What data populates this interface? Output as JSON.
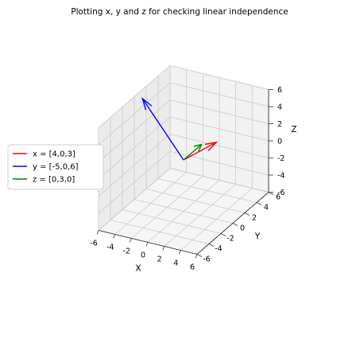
{
  "chart_data": {
    "type": "quiver3d",
    "title": "Plotting x, y and z for checking linear independence",
    "xlabel": "X",
    "ylabel": "Y",
    "zlabel": "Z",
    "xlim": [
      -6,
      6
    ],
    "ylim": [
      -6,
      6
    ],
    "zlim": [
      -6,
      6
    ],
    "ticks": [
      -6,
      -4,
      -2,
      0,
      2,
      4,
      6
    ],
    "grid": true,
    "legend_position": "center-left",
    "series": [
      {
        "name": "x = [4,0,3]",
        "origin": [
          0,
          0,
          0
        ],
        "vector": [
          4,
          0,
          3
        ],
        "color": "#ff0000"
      },
      {
        "name": "y = [-5,0,6]",
        "origin": [
          0,
          0,
          0
        ],
        "vector": [
          -5,
          0,
          6
        ],
        "color": "#0000ff"
      },
      {
        "name": "z = [0,3,0]",
        "origin": [
          0,
          0,
          0
        ],
        "vector": [
          0,
          3,
          0
        ],
        "color": "#008000"
      }
    ]
  }
}
